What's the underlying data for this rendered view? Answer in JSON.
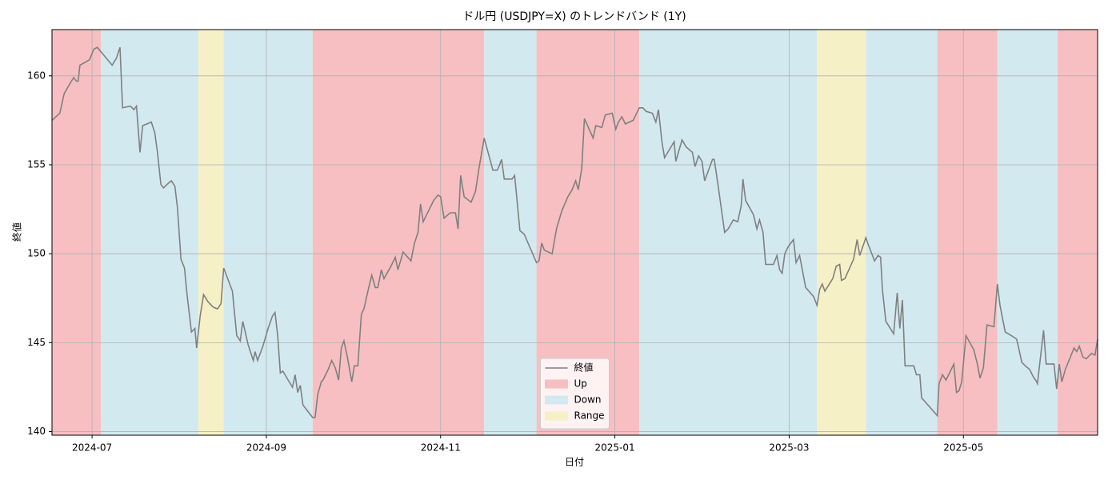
{
  "chart_data": {
    "type": "line",
    "title": "ドル円 (USDJPY=X) のトレンドバンド (1Y)",
    "x_label": "日付",
    "y_label": "終値",
    "grid": true,
    "legend": "lower center",
    "xlim": [
      -0.46,
      11.54
    ],
    "xticks": [
      {
        "value": 0,
        "label": "2024-07"
      },
      {
        "value": 2,
        "label": "2024-09"
      },
      {
        "value": 4,
        "label": "2024-11"
      },
      {
        "value": 6,
        "label": "2025-01"
      },
      {
        "value": 8,
        "label": "2025-03"
      },
      {
        "value": 10,
        "label": "2025-05"
      }
    ],
    "ylim": [
      139.8,
      162.6
    ],
    "yticks": [
      140,
      145,
      150,
      155,
      160
    ],
    "x": [
      -0.46,
      -0.37,
      -0.32,
      -0.25,
      -0.21,
      -0.18,
      -0.16,
      -0.14,
      -0.03,
      0.02,
      0.06,
      0.23,
      0.28,
      0.32,
      0.35,
      0.44,
      0.48,
      0.51,
      0.55,
      0.58,
      0.68,
      0.72,
      0.75,
      0.79,
      0.82,
      0.86,
      0.91,
      0.95,
      0.98,
      1.02,
      1.06,
      1.09,
      1.14,
      1.18,
      1.2,
      1.24,
      1.28,
      1.33,
      1.39,
      1.44,
      1.48,
      1.51,
      1.61,
      1.66,
      1.7,
      1.73,
      1.79,
      1.85,
      1.87,
      1.9,
      1.96,
      2.02,
      2.07,
      2.1,
      2.13,
      2.16,
      2.19,
      2.25,
      2.3,
      2.33,
      2.36,
      2.39,
      2.42,
      2.53,
      2.56,
      2.59,
      2.63,
      2.65,
      2.71,
      2.75,
      2.79,
      2.83,
      2.86,
      2.89,
      2.93,
      2.98,
      3.01,
      3.05,
      3.09,
      3.12,
      3.17,
      3.21,
      3.25,
      3.28,
      3.32,
      3.35,
      3.43,
      3.48,
      3.51,
      3.57,
      3.66,
      3.7,
      3.74,
      3.77,
      3.8,
      3.87,
      3.92,
      3.97,
      4.0,
      4.04,
      4.11,
      4.17,
      4.2,
      4.23,
      4.27,
      4.35,
      4.4,
      4.44,
      4.5,
      4.6,
      4.65,
      4.67,
      4.7,
      4.73,
      4.82,
      4.85,
      4.91,
      4.96,
      5.1,
      5.13,
      5.16,
      5.19,
      5.28,
      5.33,
      5.39,
      5.46,
      5.51,
      5.55,
      5.58,
      5.62,
      5.65,
      5.75,
      5.78,
      5.85,
      5.89,
      5.97,
      6.01,
      6.04,
      6.08,
      6.12,
      6.21,
      6.24,
      6.28,
      6.32,
      6.36,
      6.43,
      6.47,
      6.5,
      6.54,
      6.57,
      6.68,
      6.7,
      6.77,
      6.82,
      6.89,
      6.92,
      6.96,
      7.0,
      7.03,
      7.12,
      7.14,
      7.18,
      7.26,
      7.3,
      7.36,
      7.41,
      7.45,
      7.47,
      7.5,
      7.59,
      7.63,
      7.66,
      7.7,
      7.73,
      7.82,
      7.86,
      7.89,
      7.92,
      7.95,
      7.99,
      8.05,
      8.08,
      8.12,
      8.19,
      8.28,
      8.32,
      8.35,
      8.38,
      8.41,
      8.5,
      8.54,
      8.58,
      8.6,
      8.64,
      8.74,
      8.78,
      8.81,
      8.88,
      8.91,
      8.98,
      9.02,
      9.05,
      9.07,
      9.11,
      9.2,
      9.24,
      9.27,
      9.3,
      9.33,
      9.43,
      9.46,
      9.5,
      9.52,
      9.7,
      9.72,
      9.76,
      9.8,
      9.89,
      9.92,
      9.95,
      9.98,
      10.03,
      10.12,
      10.16,
      10.19,
      10.23,
      10.27,
      10.35,
      10.39,
      10.42,
      10.48,
      10.55,
      10.61,
      10.63,
      10.67,
      10.71,
      10.76,
      10.8,
      10.84,
      10.85,
      10.92,
      10.95,
      11.04,
      11.07,
      11.1,
      11.13,
      11.17,
      11.27,
      11.3,
      11.33,
      11.37,
      11.41,
      11.47,
      11.51,
      11.54
    ],
    "series": [
      {
        "name": "終値",
        "color": "#808080",
        "values": [
          157.5,
          157.9,
          159.0,
          159.6,
          159.9,
          159.7,
          159.7,
          160.6,
          160.9,
          161.5,
          161.6,
          160.6,
          161.0,
          161.6,
          158.2,
          158.3,
          158.1,
          158.3,
          155.7,
          157.2,
          157.4,
          156.8,
          155.7,
          153.9,
          153.7,
          153.9,
          154.1,
          153.8,
          152.6,
          149.7,
          149.2,
          147.7,
          145.6,
          145.8,
          144.7,
          146.5,
          147.7,
          147.3,
          147.0,
          146.9,
          147.2,
          149.2,
          147.9,
          145.4,
          145.1,
          146.2,
          144.9,
          144.0,
          144.5,
          144.0,
          144.8,
          145.8,
          146.5,
          146.7,
          145.4,
          143.3,
          143.4,
          142.9,
          142.5,
          143.2,
          142.2,
          142.6,
          141.5,
          140.8,
          140.8,
          142.1,
          142.8,
          142.9,
          143.5,
          144.0,
          143.6,
          142.9,
          144.7,
          145.1,
          144.2,
          142.8,
          143.7,
          143.7,
          146.6,
          146.9,
          148.0,
          148.8,
          148.1,
          148.1,
          149.1,
          148.6,
          149.3,
          149.8,
          149.1,
          150.1,
          149.6,
          150.6,
          151.2,
          152.8,
          151.8,
          152.5,
          153.0,
          153.3,
          153.2,
          152.0,
          152.3,
          152.3,
          151.4,
          154.4,
          153.2,
          152.9,
          153.5,
          154.8,
          156.5,
          154.7,
          154.7,
          154.9,
          155.3,
          154.2,
          154.2,
          154.4,
          151.3,
          151.1,
          149.5,
          149.6,
          150.6,
          150.2,
          150.0,
          151.4,
          152.4,
          153.2,
          153.6,
          154.1,
          153.6,
          154.8,
          157.6,
          156.5,
          157.2,
          157.1,
          157.8,
          157.9,
          157.0,
          157.4,
          157.7,
          157.3,
          157.5,
          157.8,
          158.2,
          158.2,
          158.0,
          157.9,
          157.4,
          158.1,
          156.3,
          155.4,
          156.3,
          155.2,
          156.4,
          156.0,
          155.7,
          154.9,
          155.5,
          155.2,
          154.1,
          155.3,
          155.3,
          154.0,
          151.2,
          151.4,
          151.9,
          151.8,
          152.7,
          154.2,
          153.0,
          152.2,
          151.4,
          151.9,
          151.2,
          149.4,
          149.4,
          149.9,
          149.1,
          148.9,
          150.0,
          150.4,
          150.8,
          149.5,
          149.9,
          148.1,
          147.6,
          147.1,
          148.0,
          148.3,
          147.9,
          148.6,
          149.3,
          149.4,
          148.5,
          148.6,
          149.7,
          150.8,
          149.9,
          150.9,
          150.5,
          149.6,
          149.9,
          149.8,
          148.0,
          146.2,
          145.5,
          147.8,
          145.8,
          147.4,
          143.7,
          143.7,
          143.2,
          143.2,
          141.9,
          140.9,
          142.7,
          143.2,
          142.9,
          143.8,
          142.2,
          142.3,
          142.8,
          145.4,
          144.6,
          143.8,
          143.0,
          143.6,
          146.0,
          145.9,
          148.3,
          147.1,
          145.6,
          145.4,
          145.2,
          144.8,
          143.9,
          143.7,
          143.5,
          143.1,
          142.8,
          142.7,
          145.7,
          143.8,
          143.8,
          142.4,
          143.8,
          142.8,
          143.5,
          144.7,
          144.5,
          144.8,
          144.2,
          144.1,
          144.4,
          144.3,
          145.2
        ]
      }
    ],
    "bands": [
      {
        "name": "Up",
        "color": "#f7bfc2",
        "spans": [
          [
            -0.46,
            0.1
          ],
          [
            2.53,
            4.5
          ],
          [
            5.1,
            6.28
          ],
          [
            9.7,
            10.39
          ],
          [
            11.08,
            11.54
          ]
        ]
      },
      {
        "name": "Down",
        "color": "#d3e9f0",
        "spans": [
          [
            0.1,
            1.22
          ],
          [
            1.51,
            2.53
          ],
          [
            4.5,
            5.1
          ],
          [
            6.28,
            8.32
          ],
          [
            8.88,
            9.7
          ],
          [
            10.39,
            11.08
          ]
        ]
      },
      {
        "name": "Range",
        "color": "#f6f0c6",
        "spans": [
          [
            1.22,
            1.51
          ],
          [
            8.32,
            8.88
          ]
        ]
      }
    ]
  }
}
